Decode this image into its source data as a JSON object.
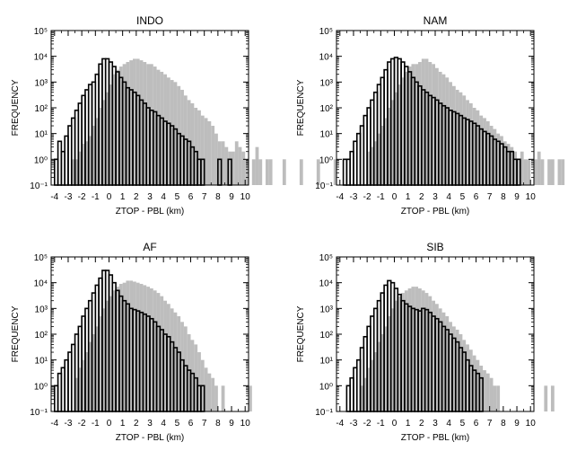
{
  "chart_data": [
    {
      "type": "bar",
      "title": "INDO",
      "xlabel": "ZTOP - PBL (km)",
      "ylabel": "FREQUENCY",
      "yscale": "log",
      "xlim": [
        -4.25,
        10.25
      ],
      "ylim": [
        0.1,
        100000
      ],
      "bin_width": 0.25,
      "xticks": [
        "-4",
        "-3",
        "-2",
        "-1",
        "0",
        "1",
        "2",
        "3",
        "4",
        "5",
        "6",
        "7",
        "8",
        "9",
        "10"
      ],
      "yticks": [
        "10⁻¹",
        "10⁰",
        "10¹",
        "10²",
        "10³",
        "10⁴",
        "10⁵"
      ],
      "series": [
        {
          "color": "#bdbdbd",
          "x_start": -2.75,
          "values": [
            1,
            1,
            2,
            4,
            5,
            8,
            20,
            40,
            100,
            200,
            400,
            800,
            2000,
            3000,
            4000,
            5000,
            6000,
            7000,
            8000,
            8000,
            7000,
            6000,
            5000,
            5000,
            4000,
            3000,
            2500,
            2000,
            1500,
            1200,
            1000,
            700,
            500,
            300,
            200,
            150,
            100,
            80,
            50,
            40,
            30,
            20,
            10,
            5,
            5,
            3,
            2,
            2,
            5,
            3,
            2,
            1,
            0,
            1,
            3,
            1,
            0,
            1,
            1,
            0,
            0,
            0,
            1,
            0,
            0,
            0,
            0,
            1,
            0,
            0,
            0,
            0,
            1,
            0,
            0,
            0,
            0,
            1
          ]
        },
        {
          "color": "#000000",
          "x_start": -4.0,
          "values": [
            1,
            5,
            2,
            8,
            20,
            40,
            80,
            150,
            300,
            500,
            800,
            1000,
            2000,
            5000,
            8000,
            8000,
            6000,
            4000,
            2500,
            1500,
            1000,
            600,
            500,
            400,
            300,
            200,
            150,
            100,
            80,
            70,
            50,
            40,
            30,
            25,
            20,
            15,
            10,
            8,
            6,
            5,
            3,
            2,
            1,
            1,
            0,
            0,
            0,
            0,
            1,
            0,
            0,
            1
          ]
        }
      ]
    },
    {
      "type": "bar",
      "title": "NAM",
      "xlabel": "ZTOP - PBL (km)",
      "ylabel": "FREQUENCY",
      "yscale": "log",
      "xlim": [
        -4.25,
        10.25
      ],
      "ylim": [
        0.1,
        100000
      ],
      "bin_width": 0.25,
      "xticks": [
        "-4",
        "-3",
        "-2",
        "-1",
        "0",
        "1",
        "2",
        "3",
        "4",
        "5",
        "6",
        "7",
        "8",
        "9",
        "10"
      ],
      "yticks": [
        "10⁻¹",
        "10⁰",
        "10¹",
        "10²",
        "10³",
        "10⁴",
        "10⁵"
      ],
      "series": [
        {
          "color": "#bdbdbd",
          "x_start": -2.0,
          "values": [
            2,
            3,
            5,
            10,
            20,
            40,
            100,
            200,
            400,
            800,
            1500,
            2500,
            4000,
            5000,
            5000,
            6000,
            8000,
            8000,
            6000,
            5000,
            3500,
            2500,
            2000,
            1500,
            1000,
            700,
            500,
            400,
            300,
            200,
            150,
            100,
            80,
            50,
            40,
            30,
            20,
            15,
            10,
            8,
            5,
            4,
            3,
            2,
            1,
            2,
            1,
            1,
            0,
            1,
            2,
            1,
            0,
            1,
            1,
            0,
            1,
            1,
            0,
            0,
            1,
            1,
            0,
            1,
            1,
            0,
            0,
            1,
            1,
            0,
            0,
            0,
            1,
            0,
            0,
            0,
            1
          ]
        },
        {
          "color": "#000000",
          "x_start": -3.75,
          "values": [
            1,
            1,
            2,
            5,
            10,
            20,
            50,
            100,
            200,
            400,
            800,
            1500,
            3000,
            6000,
            8000,
            9000,
            8000,
            6000,
            4000,
            2500,
            1500,
            1000,
            700,
            500,
            400,
            300,
            250,
            200,
            150,
            120,
            100,
            80,
            70,
            60,
            50,
            40,
            35,
            30,
            25,
            20,
            15,
            12,
            10,
            8,
            6,
            5,
            4,
            3,
            2,
            2,
            1,
            1
          ]
        }
      ]
    },
    {
      "type": "bar",
      "title": "AF",
      "xlabel": "ZTOP - PBL (km)",
      "ylabel": "FREQUENCY",
      "yscale": "log",
      "xlim": [
        -4.25,
        10.25
      ],
      "ylim": [
        0.1,
        100000
      ],
      "bin_width": 0.25,
      "xticks": [
        "-4",
        "-3",
        "-2",
        "-1",
        "0",
        "1",
        "2",
        "3",
        "4",
        "5",
        "6",
        "7",
        "8",
        "9",
        "10"
      ],
      "yticks": [
        "10⁻¹",
        "10⁰",
        "10¹",
        "10²",
        "10³",
        "10⁴",
        "10⁵"
      ],
      "series": [
        {
          "color": "#bdbdbd",
          "x_start": -2.5,
          "values": [
            2,
            5,
            10,
            20,
            50,
            100,
            200,
            500,
            1000,
            2000,
            3000,
            5000,
            7000,
            9000,
            10000,
            12000,
            12000,
            11000,
            10000,
            9000,
            8000,
            7000,
            6000,
            5000,
            4000,
            3000,
            2000,
            1500,
            1000,
            700,
            500,
            300,
            200,
            100,
            60,
            40,
            20,
            10,
            5,
            3,
            2,
            1,
            0,
            1,
            0,
            0,
            0,
            0,
            0,
            0,
            0,
            1
          ]
        },
        {
          "color": "#000000",
          "x_start": -4.0,
          "values": [
            1,
            3,
            5,
            10,
            20,
            40,
            100,
            200,
            500,
            1000,
            2000,
            4000,
            8000,
            15000,
            30000,
            30000,
            20000,
            10000,
            5000,
            3000,
            2000,
            1500,
            1000,
            900,
            800,
            700,
            600,
            500,
            400,
            300,
            200,
            150,
            100,
            80,
            50,
            30,
            20,
            10,
            6,
            4,
            3,
            2,
            1,
            1
          ]
        }
      ]
    },
    {
      "type": "bar",
      "title": "SIB",
      "xlabel": "ZTOP - PBL (km)",
      "ylabel": "FREQUENCY",
      "yscale": "log",
      "xlim": [
        -4.25,
        10.25
      ],
      "ylim": [
        0.1,
        100000
      ],
      "bin_width": 0.25,
      "xticks": [
        "-4",
        "-3",
        "-2",
        "-1",
        "0",
        "1",
        "2",
        "3",
        "4",
        "5",
        "6",
        "7",
        "8",
        "9",
        "10"
      ],
      "yticks": [
        "10⁻¹",
        "10⁰",
        "10¹",
        "10²",
        "10³",
        "10⁴",
        "10⁵"
      ],
      "series": [
        {
          "color": "#bdbdbd",
          "x_start": -2.5,
          "values": [
            1,
            2,
            5,
            10,
            20,
            50,
            100,
            200,
            500,
            1000,
            2000,
            3000,
            4000,
            5000,
            6000,
            7000,
            7000,
            6000,
            5000,
            4000,
            3000,
            2000,
            1500,
            1000,
            700,
            500,
            300,
            200,
            150,
            100,
            60,
            40,
            25,
            15,
            10,
            6,
            4,
            3,
            2,
            1,
            1,
            0,
            0,
            0,
            0,
            0,
            0,
            0,
            0,
            0,
            0,
            0,
            0,
            0,
            1,
            0,
            1
          ]
        },
        {
          "color": "#000000",
          "x_start": -3.5,
          "values": [
            1,
            2,
            5,
            10,
            30,
            80,
            200,
            500,
            1000,
            2000,
            4000,
            8000,
            12000,
            10000,
            6000,
            3500,
            2000,
            1500,
            1200,
            1000,
            900,
            800,
            1000,
            900,
            700,
            500,
            400,
            300,
            200,
            150,
            100,
            70,
            50,
            30,
            20,
            10,
            6,
            4,
            3,
            2
          ]
        }
      ]
    }
  ]
}
